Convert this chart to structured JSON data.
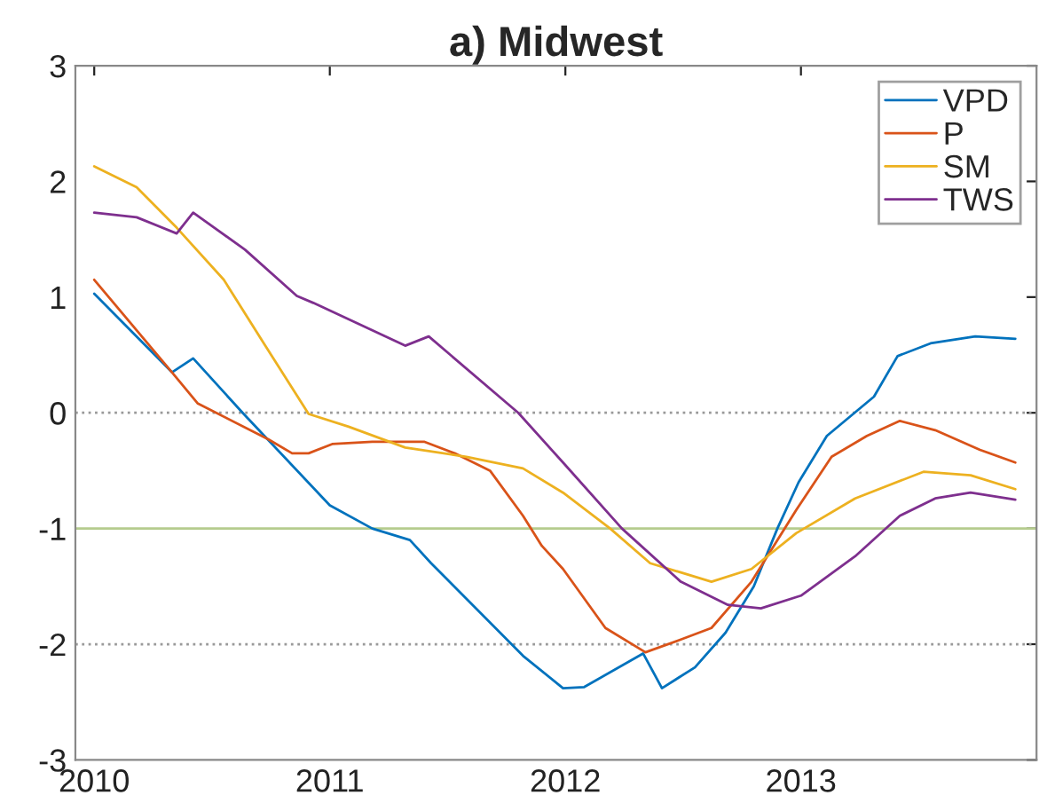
{
  "chart_data": {
    "type": "line",
    "title": "a) Midwest",
    "xlim": [
      2009.92,
      2014.0
    ],
    "xticks": [
      2010,
      2011,
      2012,
      2013
    ],
    "ylim": [
      -3,
      3
    ],
    "yticks": [
      -3,
      -2,
      -1,
      0,
      1,
      2,
      3
    ],
    "grid": false,
    "legend": "top right",
    "marker": "none",
    "line_style": "solid",
    "ref_lines": [
      {
        "axis": "y",
        "value": 0,
        "color": "#999999",
        "line_style": "dotted"
      },
      {
        "axis": "y",
        "value": -1,
        "color": "#b5cc8e",
        "line_style": "solid"
      },
      {
        "axis": "y",
        "value": -2,
        "color": "#999999",
        "line_style": "dotted"
      }
    ],
    "series": [
      {
        "name": "VPD",
        "color": "#0072bd",
        "x": [
          2010.0,
          2010.33,
          2010.42,
          2010.63,
          2011.0,
          2011.18,
          2011.34,
          2011.43,
          2011.82,
          2011.99,
          2012.08,
          2012.33,
          2012.41,
          2012.55,
          2012.68,
          2012.8,
          2012.9,
          2012.99,
          2013.11,
          2013.31,
          2013.41,
          2013.55,
          2013.74,
          2013.91
        ],
        "values": [
          1.03,
          0.35,
          0.47,
          0.0,
          -0.8,
          -1.0,
          -1.1,
          -1.3,
          -2.1,
          -2.38,
          -2.37,
          -2.08,
          -2.38,
          -2.2,
          -1.9,
          -1.5,
          -1.0,
          -0.6,
          -0.2,
          0.14,
          0.49,
          0.6,
          0.66,
          0.64
        ]
      },
      {
        "name": "P",
        "color": "#d95319",
        "x": [
          2010.0,
          2010.33,
          2010.44,
          2010.74,
          2010.84,
          2010.91,
          2011.01,
          2011.18,
          2011.4,
          2011.53,
          2011.68,
          2011.82,
          2011.9,
          2011.99,
          2012.17,
          2012.34,
          2012.49,
          2012.62,
          2012.79,
          2012.98,
          2013.13,
          2013.28,
          2013.42,
          2013.57,
          2013.76,
          2013.91
        ],
        "values": [
          1.15,
          0.35,
          0.08,
          -0.23,
          -0.35,
          -0.35,
          -0.27,
          -0.25,
          -0.25,
          -0.35,
          -0.5,
          -0.89,
          -1.15,
          -1.35,
          -1.86,
          -2.07,
          -1.96,
          -1.86,
          -1.46,
          -0.84,
          -0.38,
          -0.2,
          -0.07,
          -0.15,
          -0.32,
          -0.43
        ]
      },
      {
        "name": "SM",
        "color": "#edb120",
        "x": [
          2010.0,
          2010.18,
          2010.35,
          2010.55,
          2010.72,
          2010.91,
          2011.08,
          2011.32,
          2011.58,
          2011.82,
          2011.99,
          2012.19,
          2012.36,
          2012.62,
          2012.79,
          2012.98,
          2013.23,
          2013.52,
          2013.72,
          2013.91
        ],
        "values": [
          2.13,
          1.95,
          1.6,
          1.15,
          0.6,
          -0.01,
          -0.12,
          -0.3,
          -0.38,
          -0.48,
          -0.69,
          -1.0,
          -1.3,
          -1.46,
          -1.35,
          -1.04,
          -0.74,
          -0.51,
          -0.54,
          -0.66
        ]
      },
      {
        "name": "TWS",
        "color": "#7e2f8e",
        "x": [
          2010.0,
          2010.18,
          2010.35,
          2010.42,
          2010.64,
          2010.86,
          2010.93,
          2011.32,
          2011.42,
          2011.8,
          2011.99,
          2012.24,
          2012.49,
          2012.69,
          2012.83,
          2013.0,
          2013.23,
          2013.42,
          2013.57,
          2013.72,
          2013.91
        ],
        "values": [
          1.73,
          1.69,
          1.55,
          1.73,
          1.41,
          1.01,
          0.95,
          0.58,
          0.66,
          0.0,
          -0.43,
          -1.0,
          -1.46,
          -1.66,
          -1.69,
          -1.58,
          -1.24,
          -0.89,
          -0.74,
          -0.69,
          -0.75
        ]
      }
    ]
  }
}
